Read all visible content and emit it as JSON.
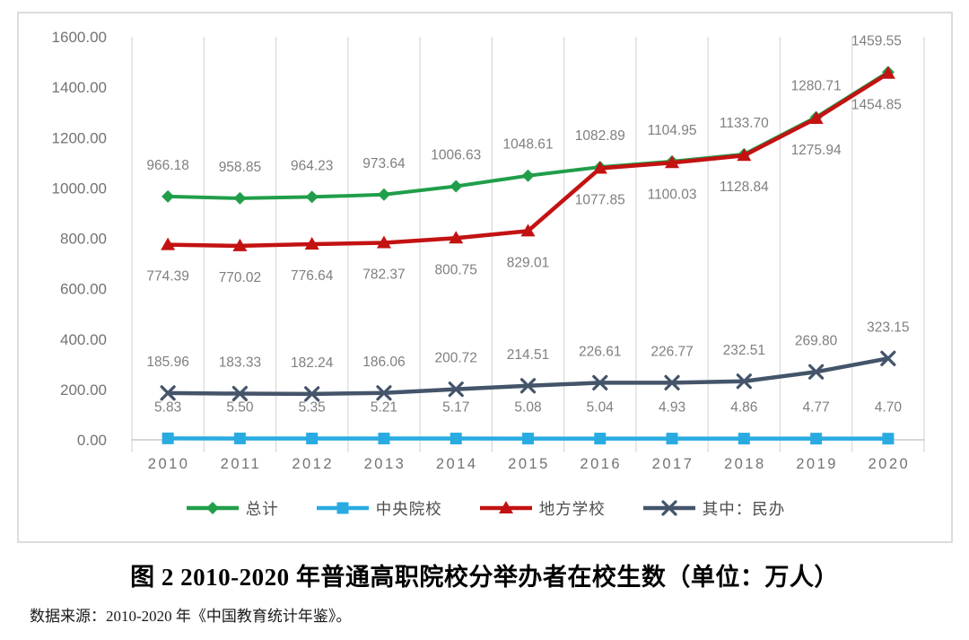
{
  "figure": {
    "title": "图 2 2010-2020 年普通高职院校分举办者在校生数（单位：万人）",
    "source_note": "数据来源：2010-2020 年《中国教育统计年鉴》。"
  },
  "chart_data": {
    "type": "line",
    "categories": [
      "2010",
      "2011",
      "2012",
      "2013",
      "2014",
      "2015",
      "2016",
      "2017",
      "2018",
      "2019",
      "2020"
    ],
    "series": [
      {
        "name": "总计",
        "color": "#209E4A",
        "marker": "diamond",
        "label_side": "above",
        "values": [
          966.18,
          958.85,
          964.23,
          973.64,
          1006.63,
          1048.61,
          1082.89,
          1104.95,
          1133.7,
          1280.71,
          1459.55
        ]
      },
      {
        "name": "中央院校",
        "color": "#29ABE2",
        "marker": "square",
        "label_side": "above",
        "values": [
          5.83,
          5.5,
          5.35,
          5.21,
          5.17,
          5.08,
          5.04,
          4.93,
          4.86,
          4.77,
          4.7
        ]
      },
      {
        "name": "地方学校",
        "color": "#C31212",
        "marker": "triangle",
        "label_side": "below",
        "values": [
          774.39,
          770.02,
          776.64,
          782.37,
          800.75,
          829.01,
          1077.85,
          1100.03,
          1128.84,
          1275.94,
          1454.85
        ]
      },
      {
        "name": "其中：民办",
        "color": "#44546A",
        "marker": "x",
        "label_side": "above",
        "values": [
          185.96,
          183.33,
          182.24,
          186.06,
          200.72,
          214.51,
          226.61,
          226.77,
          232.51,
          269.8,
          323.15
        ]
      }
    ],
    "ylim": [
      0,
      1600
    ],
    "y_tick_step": 200,
    "y_tick_labels": [
      "0.00",
      "200.00",
      "400.00",
      "600.00",
      "800.00",
      "1000.00",
      "1200.00",
      "1400.00",
      "1600.00"
    ],
    "value_label_decimals": 2,
    "grid": "vertical-only",
    "legend_position": "bottom",
    "colors": {
      "gridline": "#D9D9D9",
      "axis_line": "#BFBFBF",
      "tick_label": "#737373",
      "data_label": "#7F7F7F",
      "legend_text": "#4D4D4D"
    }
  }
}
